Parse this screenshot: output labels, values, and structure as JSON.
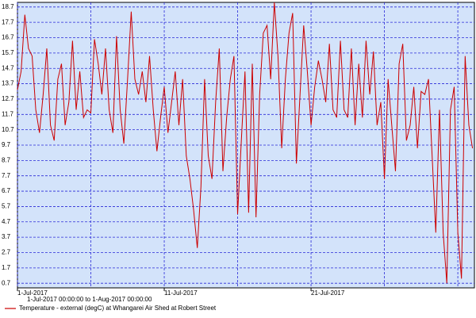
{
  "chart_data": {
    "type": "line",
    "subtitle": "1-Jul-2017 00:00:00 to  1-Aug-2017 00:00:00",
    "x": [
      1,
      1.25,
      1.5,
      1.75,
      2,
      2.25,
      2.5,
      2.75,
      3,
      3.25,
      3.5,
      3.75,
      4,
      4.25,
      4.5,
      4.75,
      5,
      5.25,
      5.5,
      5.75,
      6,
      6.25,
      6.5,
      6.75,
      7,
      7.25,
      7.5,
      7.75,
      8,
      8.25,
      8.5,
      8.75,
      9,
      9.25,
      9.5,
      9.75,
      10,
      10.25,
      10.5,
      10.75,
      11,
      11.25,
      11.5,
      11.75,
      12,
      12.25,
      12.5,
      12.75,
      13,
      13.25,
      13.5,
      13.75,
      14,
      14.25,
      14.5,
      14.75,
      15,
      15.25,
      15.5,
      15.75,
      16,
      16.25,
      16.5,
      16.75,
      17,
      17.25,
      17.5,
      17.75,
      18,
      18.25,
      18.5,
      18.75,
      19,
      19.25,
      19.5,
      19.75,
      20,
      20.25,
      20.5,
      20.75,
      21,
      21.25,
      21.5,
      21.75,
      22,
      22.25,
      22.5,
      22.75,
      23,
      23.25,
      23.5,
      23.75,
      24,
      24.25,
      24.5,
      24.75,
      25,
      25.25,
      25.5,
      25.75,
      26,
      26.25,
      26.5,
      26.75,
      27,
      27.25,
      27.5,
      27.75,
      28,
      28.25,
      28.5,
      28.75,
      29,
      29.25,
      29.5,
      29.75,
      30,
      30.25,
      30.5,
      30.75,
      31,
      31.25,
      31.5,
      31.75,
      32
    ],
    "series": [
      {
        "name": "Temperature - external (degC) at Whangarei Air Shed at Robert Street",
        "color": "#cc0000",
        "values": [
          13.3,
          14.5,
          18.2,
          16.0,
          15.5,
          12.0,
          10.5,
          13.0,
          16.0,
          11.0,
          10.0,
          14.0,
          15.0,
          11.0,
          12.5,
          16.5,
          12.0,
          14.5,
          11.5,
          12.0,
          11.8,
          16.6,
          15.0,
          13.0,
          16.0,
          12.0,
          10.5,
          16.8,
          12.0,
          9.8,
          14.0,
          18.4,
          14.0,
          13.0,
          14.5,
          12.5,
          15.5,
          12.0,
          9.3,
          11.5,
          13.5,
          10.5,
          12.5,
          14.5,
          11.0,
          14.0,
          9.0,
          7.5,
          5.5,
          3.0,
          7.0,
          14.0,
          9.0,
          7.5,
          12.5,
          16.0,
          8.0,
          11.5,
          14.0,
          15.5,
          5.2,
          10.0,
          14.5,
          5.3,
          15.0,
          5.0,
          13.0,
          17.0,
          17.5,
          14.0,
          19.0,
          15.5,
          9.5,
          14.0,
          17.0,
          18.3,
          8.5,
          13.0,
          17.5,
          14.5,
          11.0,
          13.5,
          15.2,
          14.0,
          12.5,
          16.3,
          12.0,
          11.5,
          16.5,
          12.0,
          11.5,
          16.0,
          11.0,
          15.0,
          11.5,
          16.5,
          13.0,
          15.8,
          11.0,
          12.5,
          7.5,
          14.0,
          11.0,
          8.0,
          15.0,
          16.3,
          10.0,
          11.0,
          13.5,
          9.5,
          13.2,
          13.0,
          14.0,
          9.0,
          4.0,
          12.0,
          4.0,
          0.7,
          12.0,
          13.5,
          4.0,
          1.0,
          15.5,
          11.0,
          9.5
        ]
      }
    ],
    "xlim": [
      1,
      32.13
    ],
    "xticks": [
      {
        "value": 1,
        "label": "1-Jul-2017"
      },
      {
        "value": 11,
        "label": "11-Jul-2017"
      },
      {
        "value": 21,
        "label": "21-Jul-2017"
      }
    ],
    "xgrid": [
      1,
      6,
      11,
      16,
      21,
      26,
      31
    ],
    "ylim": [
      0.4,
      19.0
    ],
    "yticks": [
      0.7,
      1.7,
      2.7,
      3.7,
      4.7,
      5.7,
      6.7,
      7.7,
      8.7,
      9.7,
      10.7,
      11.7,
      12.7,
      13.7,
      14.7,
      15.7,
      16.7,
      17.7,
      18.7
    ],
    "grid": true
  }
}
